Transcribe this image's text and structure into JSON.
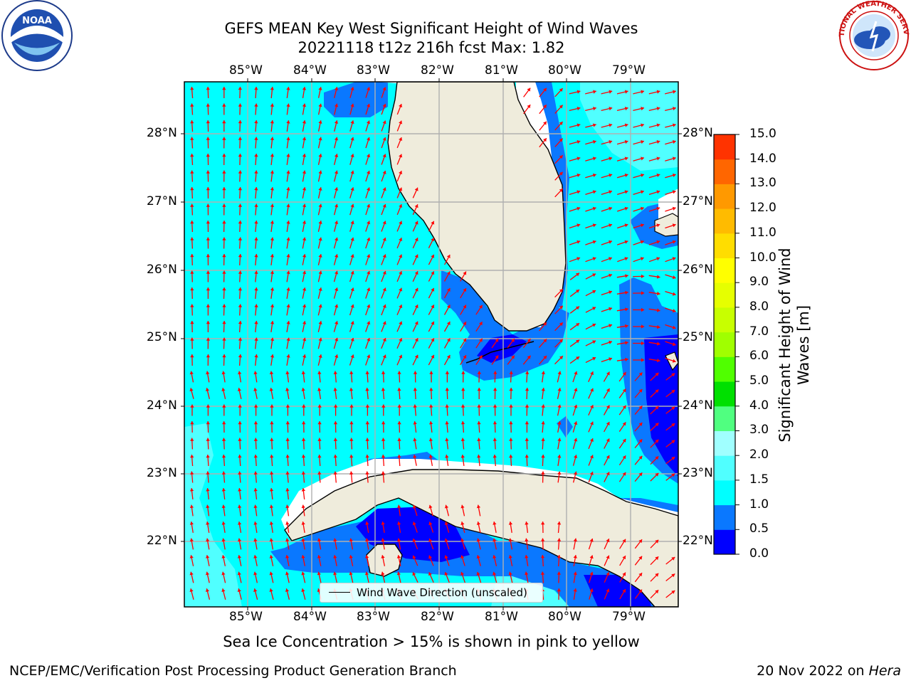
{
  "title": {
    "line1": "GEFS MEAN Key West Significant Height of Wind Waves",
    "line2": "20221118 t12z 216h fcst   Max: 1.82"
  },
  "map": {
    "lon_ticks": [
      "85°W",
      "84°W",
      "83°W",
      "82°W",
      "81°W",
      "80°W",
      "79°W"
    ],
    "lat_ticks": [
      "28°N",
      "27°N",
      "26°N",
      "25°N",
      "24°N",
      "23°N",
      "22°N"
    ],
    "legend": "Wind Wave Direction (unscaled)",
    "arrow_color": "#ff0000",
    "land_color": "#efecdc",
    "grid_color": "#b0b0b0"
  },
  "colorbar": {
    "label_line1": "Significant Height of Wind",
    "label_line2": "Waves [m]",
    "ticks": [
      "15.0",
      "14.0",
      "13.0",
      "12.0",
      "11.0",
      "10.0",
      "9.0",
      "8.0",
      "7.0",
      "6.0",
      "5.0",
      "4.0",
      "3.0",
      "2.0",
      "1.5",
      "1.0",
      "0.5",
      "0.0"
    ],
    "colors": [
      "#0000ff",
      "#0a78ff",
      "#00ffff",
      "#50ffff",
      "#a0ffff",
      "#50ff80",
      "#00e000",
      "#50ff00",
      "#a0ff00",
      "#c8ff00",
      "#e6ff00",
      "#ffff00",
      "#ffdd00",
      "#ffbb00",
      "#ff9900",
      "#ff6600",
      "#ff3300"
    ]
  },
  "note": "Sea Ice Concentration > 15% is shown in pink to yellow",
  "footer": {
    "left": "NCEP/EMC/Verification Post Processing Product Generation Branch",
    "date": "20 Nov 2022 on ",
    "host": "Hera"
  },
  "logos": {
    "left": "NOAA",
    "right": "NATIONAL WEATHER SERVICE"
  }
}
